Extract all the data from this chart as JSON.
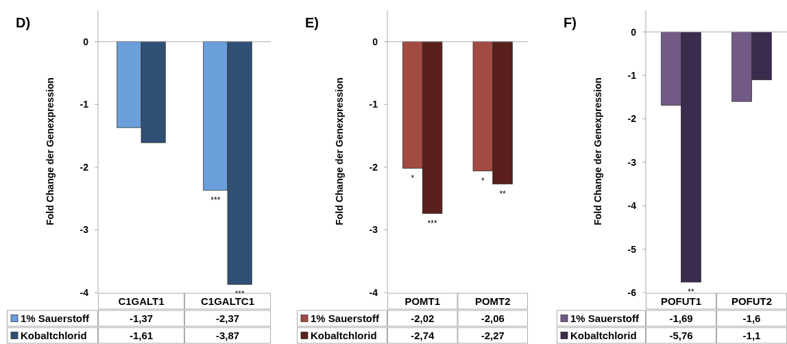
{
  "chart_data": [
    {
      "type": "bar",
      "title": "D)",
      "ylabel": "Fold Change der Genexpression",
      "categories": [
        "C1GALT1",
        "C1GALTC1"
      ],
      "series": [
        {
          "name": "1% Sauerstoff",
          "color": "#6a9fdc",
          "values": [
            -1.37,
            -2.37
          ],
          "value_labels": [
            "-1,37",
            "-2,37"
          ]
        },
        {
          "name": "Kobaltchlorid",
          "color": "#2f4f75",
          "values": [
            -1.61,
            -3.87
          ],
          "value_labels": [
            "-1,61",
            "-3,87"
          ]
        }
      ],
      "ylim": [
        -4,
        0.5
      ],
      "yticks": [
        0,
        -1,
        -2,
        -3,
        -4
      ],
      "legend": "bottom",
      "annotations": [
        {
          "text": "***",
          "x": "C1GALTC1",
          "y": -2.37
        },
        {
          "text": "***",
          "x": "C1GALTC1",
          "y": -3.87
        }
      ]
    },
    {
      "type": "bar",
      "title": "E)",
      "ylabel": "Fold Change der Genexpression",
      "categories": [
        "POMT1",
        "POMT2"
      ],
      "series": [
        {
          "name": "1% Sauerstoff",
          "color": "#a34a42",
          "values": [
            -2.02,
            -2.06
          ],
          "value_labels": [
            "-2,02",
            "-2,06"
          ]
        },
        {
          "name": "Kobaltchlorid",
          "color": "#5a1f1c",
          "values": [
            -2.74,
            -2.27
          ],
          "value_labels": [
            "-2,74",
            "-2,27"
          ]
        }
      ],
      "ylim": [
        -4,
        0.5
      ],
      "yticks": [
        0,
        -1,
        -2,
        -3,
        -4
      ],
      "legend": "bottom",
      "annotations": [
        {
          "text": "*",
          "x": "POMT1",
          "y": -2.02
        },
        {
          "text": "***",
          "x": "POMT1",
          "y": -2.74
        },
        {
          "text": "*",
          "x": "POMT2",
          "y": -2.06
        },
        {
          "text": "**",
          "x": "POMT2",
          "y": -2.27
        }
      ]
    },
    {
      "type": "bar",
      "title": "F)",
      "ylabel": "Fold Change der Genexpression",
      "categories": [
        "POFUT1",
        "POFUT2"
      ],
      "series": [
        {
          "name": "1% Sauerstoff",
          "color": "#725a87",
          "values": [
            -1.69,
            -1.6
          ],
          "value_labels": [
            "-1,69",
            "-1,6"
          ]
        },
        {
          "name": "Kobaltchlorid",
          "color": "#3a2c4c",
          "values": [
            -5.76,
            -1.1
          ],
          "value_labels": [
            "-5,76",
            "-1,1"
          ]
        }
      ],
      "ylim": [
        -6,
        0.5
      ],
      "yticks": [
        0,
        -1,
        -2,
        -3,
        -4,
        -5,
        -6
      ],
      "legend": "bottom",
      "annotations": [
        {
          "text": "**",
          "x": "POFUT1",
          "y": -5.76
        }
      ]
    }
  ]
}
